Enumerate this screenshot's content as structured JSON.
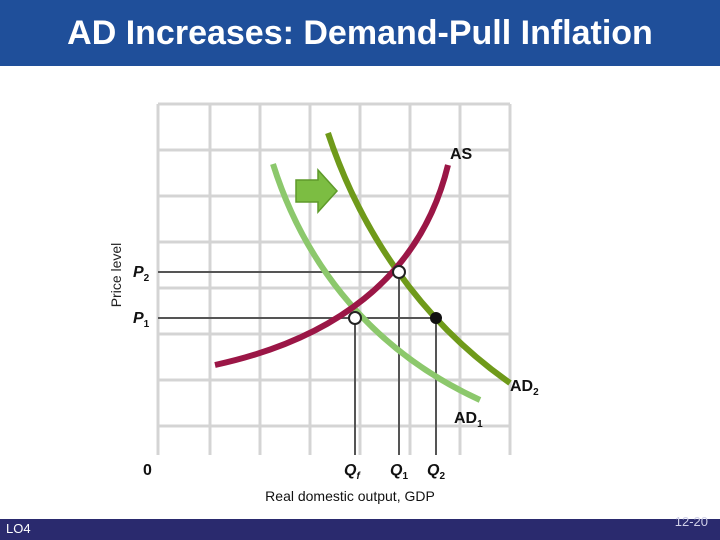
{
  "title": "AD Increases: Demand-Pull Inflation",
  "y_axis_label": "Price level",
  "x_axis_label": "Real domestic output, GDP",
  "labels": {
    "as": "AS",
    "p2_main": "P",
    "p2_sub": "2",
    "p1_main": "P",
    "p1_sub": "1",
    "ad2_main": "AD",
    "ad2_sub": "2",
    "ad1_main": "AD",
    "ad1_sub": "1",
    "origin": "0",
    "qf_main": "Q",
    "qf_sub": "f",
    "q1_main": "Q",
    "q1_sub": "1",
    "q2_main": "Q",
    "q2_sub": "2"
  },
  "footer": {
    "lo": "LO4",
    "page": "12-20"
  },
  "colors": {
    "title_bar": "#1f4f9a",
    "as_curve": "#9b1646",
    "ad1_curve": "#8cc86c",
    "ad2_curve": "#6f9a1a",
    "arrow": "#7cbd42",
    "footer_bar": "#2a2a6e"
  }
}
